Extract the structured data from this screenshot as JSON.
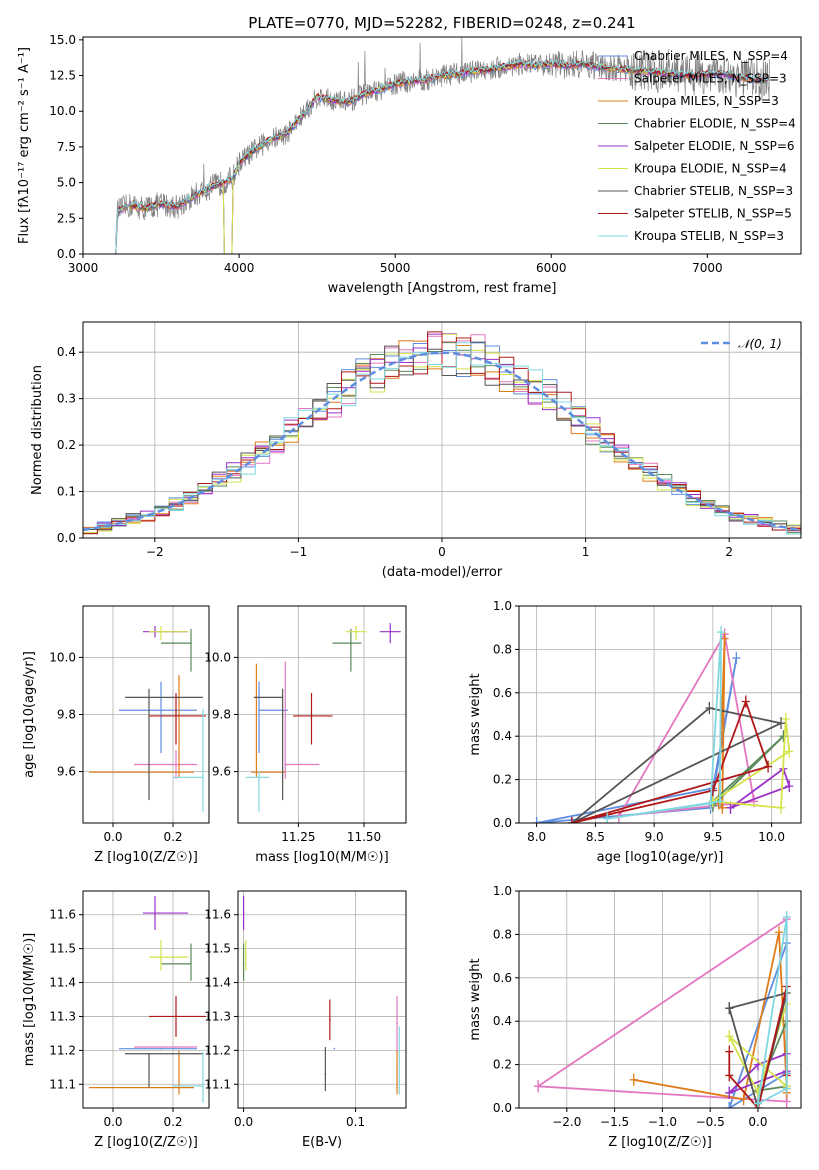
{
  "figure_title": "PLATE=0770, MJD=52282, FIBERID=0248, z=0.241",
  "colors": {
    "chabrier_miles": "#5f8ee0",
    "salpeter_miles": "#e377c2",
    "kroupa_miles": "#e07b1a",
    "chabrier_elodie": "#5a8a5a",
    "salpeter_elodie": "#9b30c8",
    "kroupa_elodie": "#d4e34a",
    "chabrier_stelib": "#555555",
    "salpeter_stelib": "#b01818",
    "kroupa_stelib": "#7fd8e0",
    "data": "#808080",
    "gauss": "#5f8ee0"
  },
  "chart_data": [
    {
      "id": "spectrum",
      "type": "line",
      "title": "PLATE=0770, MJD=52282, FIBERID=0248, z=0.241",
      "xlabel": "wavelength [Angstrom, rest frame]",
      "ylabel": "Flux [fλ10⁻¹⁷ erg cm⁻² s⁻¹ A⁻¹]",
      "xlim": [
        3000,
        7600
      ],
      "ylim": [
        0,
        15.2
      ],
      "xticks": [
        "3000",
        "4000",
        "5000",
        "6000",
        "7000"
      ],
      "yticks": [
        "0.0",
        "2.5",
        "5.0",
        "7.5",
        "10.0",
        "12.5",
        "15.0"
      ],
      "grid": false,
      "legend_position": "top-right",
      "continuum_x": [
        3210,
        3220,
        3300,
        3400,
        3500,
        3600,
        3700,
        3800,
        3900,
        3960,
        4000,
        4100,
        4200,
        4300,
        4400,
        4500,
        4600,
        4700,
        4800,
        4900,
        5000,
        5100,
        5200,
        5300,
        5400,
        5500,
        5600,
        5700,
        5800,
        5900,
        6000,
        6100,
        6200,
        6300,
        6400,
        6500,
        6600,
        6700,
        6800,
        6900,
        7000,
        7100,
        7200,
        7300,
        7400
      ],
      "continuum_y": [
        0.0,
        3.0,
        3.4,
        3.2,
        3.5,
        3.3,
        4.0,
        4.6,
        5.0,
        5.3,
        6.4,
        7.3,
        8.0,
        8.4,
        9.6,
        11.0,
        10.8,
        10.6,
        11.2,
        11.5,
        11.9,
        12.1,
        12.2,
        12.5,
        12.6,
        12.8,
        12.9,
        13.1,
        13.3,
        13.2,
        13.3,
        13.2,
        13.3,
        13.1,
        13.0,
        12.9,
        12.8,
        12.7,
        12.6,
        12.5,
        12.6,
        12.6,
        12.4,
        12.2,
        12.2
      ],
      "series": [
        {
          "name": "Chabrier MILES, N_SSP=4",
          "color_key": "chabrier_miles"
        },
        {
          "name": "Salpeter MILES, N_SSP=3",
          "color_key": "salpeter_miles"
        },
        {
          "name": "Kroupa MILES, N_SSP=3",
          "color_key": "kroupa_miles"
        },
        {
          "name": "Chabrier ELODIE, N_SSP=4",
          "color_key": "chabrier_elodie"
        },
        {
          "name": "Salpeter ELODIE, N_SSP=6",
          "color_key": "salpeter_elodie"
        },
        {
          "name": "Kroupa ELODIE, N_SSP=4",
          "color_key": "kroupa_elodie"
        },
        {
          "name": "Chabrier STELIB, N_SSP=3",
          "color_key": "chabrier_stelib"
        },
        {
          "name": "Salpeter STELIB, N_SSP=5",
          "color_key": "salpeter_stelib"
        },
        {
          "name": "Kroupa STELIB, N_SSP=3",
          "color_key": "kroupa_stelib"
        }
      ]
    },
    {
      "id": "residuals",
      "type": "histogram",
      "xlabel": "(data-model)/error",
      "ylabel": "Normed distribution",
      "xlim": [
        -2.5,
        2.5
      ],
      "ylim": [
        0,
        0.465
      ],
      "xticks": [
        "−2",
        "−1",
        "0",
        "1",
        "2"
      ],
      "yticks": [
        "0.0",
        "0.1",
        "0.2",
        "0.3",
        "0.4"
      ],
      "grid": true,
      "legend_position": "top-right",
      "legend_label": "𝒩(0, 1)",
      "bin_width": 0.1
    },
    {
      "id": "age_vs_Z",
      "type": "scatter",
      "xlabel": "Z [log10(Z/Z☉)]",
      "ylabel": "age  [log10(age/yr)]",
      "xlim": [
        -0.1,
        0.32
      ],
      "ylim": [
        9.42,
        10.18
      ],
      "xticks": [
        "0.0",
        "0.2"
      ],
      "yticks": [
        "9.6",
        "9.8",
        "10.0"
      ],
      "grid": true,
      "points": [
        {
          "c": "chabrier_miles",
          "x": 0.16,
          "y": 9.815,
          "xe": [
            0.14,
            0.12
          ],
          "ye": [
            0.15,
            0.1
          ]
        },
        {
          "c": "salpeter_miles",
          "x": 0.21,
          "y": 9.625,
          "xe": [
            0.14,
            0.07
          ],
          "ye": [
            0.05,
            0.05
          ]
        },
        {
          "c": "kroupa_miles",
          "x": 0.22,
          "y": 9.598,
          "xe": [
            0.3,
            0.05
          ],
          "ye": [
            0.02,
            0.34
          ]
        },
        {
          "c": "chabrier_elodie",
          "x": 0.26,
          "y": 10.05,
          "xe": [
            0.1,
            0.0
          ],
          "ye": [
            0.1,
            0.05
          ]
        },
        {
          "c": "salpeter_elodie",
          "x": 0.14,
          "y": 10.09,
          "xe": [
            0.04,
            0.11
          ],
          "ye": [
            0.02,
            0.02
          ]
        },
        {
          "c": "kroupa_elodie",
          "x": 0.16,
          "y": 10.09,
          "xe": [
            0.04,
            0.09
          ],
          "ye": [
            0.03,
            0.02
          ]
        },
        {
          "c": "chabrier_stelib",
          "x": 0.12,
          "y": 9.86,
          "xe": [
            0.08,
            0.18
          ],
          "ye": [
            0.36,
            0.03
          ]
        },
        {
          "c": "salpeter_stelib",
          "x": 0.21,
          "y": 9.795,
          "xe": [
            0.09,
            0.1
          ],
          "ye": [
            0.1,
            0.08
          ]
        },
        {
          "c": "kroupa_stelib",
          "x": 0.3,
          "y": 9.58,
          "xe": [
            0.1,
            0.0
          ],
          "ye": [
            0.12,
            0.24
          ]
        }
      ]
    },
    {
      "id": "age_vs_mass",
      "type": "scatter",
      "xlabel": "mass [log10(M/M☉)]",
      "ylabel": "",
      "xlim": [
        11.02,
        11.66
      ],
      "ylim": [
        9.42,
        10.18
      ],
      "xticks": [
        "11.25",
        "11.50"
      ],
      "yticks": [
        "9.6",
        "9.8",
        "10.0"
      ],
      "grid": true,
      "points": [
        {
          "c": "chabrier_miles",
          "x": 11.1,
          "y": 9.815,
          "xe": [
            0.0,
            0.11
          ],
          "ye": [
            0.15,
            0.1
          ]
        },
        {
          "c": "salpeter_miles",
          "x": 11.2,
          "y": 9.625,
          "xe": [
            0.0,
            0.13
          ],
          "ye": [
            0.05,
            0.36
          ]
        },
        {
          "c": "kroupa_miles",
          "x": 11.09,
          "y": 9.598,
          "xe": [
            0.02,
            0.11
          ],
          "ye": [
            0.02,
            0.38
          ]
        },
        {
          "c": "chabrier_elodie",
          "x": 11.45,
          "y": 10.05,
          "xe": [
            0.07,
            0.04
          ],
          "ye": [
            0.1,
            0.05
          ]
        },
        {
          "c": "salpeter_elodie",
          "x": 11.6,
          "y": 10.09,
          "xe": [
            0.04,
            0.04
          ],
          "ye": [
            0.04,
            0.03
          ]
        },
        {
          "c": "kroupa_elodie",
          "x": 11.47,
          "y": 10.09,
          "xe": [
            0.04,
            0.04
          ],
          "ye": [
            0.03,
            0.02
          ]
        },
        {
          "c": "chabrier_stelib",
          "x": 11.19,
          "y": 9.86,
          "xe": [
            0.11,
            0.0
          ],
          "ye": [
            0.36,
            0.03
          ]
        },
        {
          "c": "salpeter_stelib",
          "x": 11.3,
          "y": 9.795,
          "xe": [
            0.07,
            0.08
          ],
          "ye": [
            0.1,
            0.08
          ]
        },
        {
          "c": "kroupa_stelib",
          "x": 11.1,
          "y": 9.58,
          "xe": [
            0.05,
            0.04
          ],
          "ye": [
            0.12,
            0.02
          ]
        }
      ]
    },
    {
      "id": "mass_weight_vs_age",
      "type": "line",
      "xlabel": "age  [log10(age/yr)]",
      "ylabel": "mass weight",
      "xlim": [
        7.85,
        10.25
      ],
      "ylim": [
        0,
        1.0
      ],
      "xticks": [
        "8.0",
        "8.5",
        "9.0",
        "9.5",
        "10.0"
      ],
      "yticks": [
        "0.0",
        "0.2",
        "0.4",
        "0.6",
        "0.8",
        "1.0"
      ],
      "grid": true,
      "series": [
        {
          "c": "chabrier_miles",
          "x": [
            8.0,
            9.48,
            9.7,
            9.5,
            8.0
          ],
          "y": [
            0.0,
            0.07,
            0.76,
            0.16,
            0.0
          ]
        },
        {
          "c": "salpeter_miles",
          "x": [
            8.7,
            9.6,
            9.85,
            8.7
          ],
          "y": [
            0.03,
            0.87,
            0.1,
            0.03
          ]
        },
        {
          "c": "kroupa_miles",
          "x": [
            9.55,
            9.6,
            9.58,
            9.55
          ],
          "y": [
            0.09,
            0.85,
            0.07,
            0.09
          ]
        },
        {
          "c": "chabrier_elodie",
          "x": [
            9.5,
            10.1,
            9.5,
            9.5
          ],
          "y": [
            0.08,
            0.4,
            0.1,
            0.08
          ]
        },
        {
          "c": "salpeter_elodie",
          "x": [
            9.65,
            10.1,
            10.15,
            9.65
          ],
          "y": [
            0.07,
            0.25,
            0.17,
            0.07
          ]
        },
        {
          "c": "kroupa_elodie",
          "x": [
            9.5,
            10.08,
            10.12,
            10.15,
            9.5
          ],
          "y": [
            0.1,
            0.07,
            0.48,
            0.33,
            0.1
          ]
        },
        {
          "c": "chabrier_stelib",
          "x": [
            8.3,
            9.47,
            10.08,
            8.3
          ],
          "y": [
            0.0,
            0.53,
            0.46,
            0.0
          ]
        },
        {
          "c": "salpeter_stelib",
          "x": [
            8.3,
            9.5,
            9.78,
            9.97,
            8.3
          ],
          "y": [
            0.0,
            0.15,
            0.56,
            0.26,
            0.0
          ]
        },
        {
          "c": "kroupa_stelib",
          "x": [
            8.6,
            9.48,
            9.57,
            9.56,
            8.6
          ],
          "y": [
            0.02,
            0.09,
            0.88,
            0.1,
            0.02
          ]
        }
      ]
    },
    {
      "id": "mass_vs_Z",
      "type": "scatter",
      "xlabel": "Z [log10(Z/Z☉)]",
      "ylabel": "mass [log10(M/M☉)]",
      "xlim": [
        -0.1,
        0.32
      ],
      "ylim": [
        11.03,
        11.67
      ],
      "xticks": [
        "0.0",
        "0.2"
      ],
      "yticks": [
        "11.1",
        "11.2",
        "11.3",
        "11.4",
        "11.5",
        "11.6"
      ],
      "grid": true,
      "points": [
        {
          "c": "chabrier_miles",
          "x": 0.16,
          "y": 11.205,
          "xe": [
            0.14,
            0.12
          ],
          "ye": [
            0.0,
            0.0
          ]
        },
        {
          "c": "salpeter_miles",
          "x": 0.21,
          "y": 11.21,
          "xe": [
            0.14,
            0.07
          ],
          "ye": [
            0.0,
            0.0
          ]
        },
        {
          "c": "kroupa_miles",
          "x": 0.22,
          "y": 11.09,
          "xe": [
            0.3,
            0.05
          ],
          "ye": [
            0.02,
            0.11
          ]
        },
        {
          "c": "chabrier_elodie",
          "x": 0.26,
          "y": 11.455,
          "xe": [
            0.1,
            0.0
          ],
          "ye": [
            0.05,
            0.06
          ]
        },
        {
          "c": "salpeter_elodie",
          "x": 0.14,
          "y": 11.605,
          "xe": [
            0.04,
            0.11
          ],
          "ye": [
            0.05,
            0.05
          ]
        },
        {
          "c": "kroupa_elodie",
          "x": 0.16,
          "y": 11.475,
          "xe": [
            0.04,
            0.09
          ],
          "ye": [
            0.04,
            0.05
          ]
        },
        {
          "c": "chabrier_stelib",
          "x": 0.12,
          "y": 11.19,
          "xe": [
            0.08,
            0.18
          ],
          "ye": [
            0.1,
            0.0
          ]
        },
        {
          "c": "salpeter_stelib",
          "x": 0.21,
          "y": 11.3,
          "xe": [
            0.09,
            0.1
          ],
          "ye": [
            0.06,
            0.06
          ]
        },
        {
          "c": "kroupa_stelib",
          "x": 0.3,
          "y": 11.095,
          "xe": [
            0.1,
            0.0
          ],
          "ye": [
            0.05,
            0.1
          ]
        }
      ]
    },
    {
      "id": "mass_vs_ebv",
      "type": "scatter",
      "xlabel": "E(B-V)",
      "ylabel": "",
      "xlim": [
        -0.005,
        0.145
      ],
      "ylim": [
        11.03,
        11.67
      ],
      "xticks": [
        "0.0",
        "0.1"
      ],
      "yticks": [
        "11.1",
        "11.2",
        "11.3",
        "11.4",
        "11.5",
        "11.6"
      ],
      "grid": true,
      "points": [
        {
          "c": "chabrier_miles",
          "x": 0.081,
          "y": 11.205,
          "xe": [
            0,
            0
          ],
          "ye": [
            0.0,
            0.0
          ]
        },
        {
          "c": "salpeter_miles",
          "x": 0.137,
          "y": 11.28,
          "xe": [
            0,
            0
          ],
          "ye": [
            0.09,
            0.08
          ]
        },
        {
          "c": "kroupa_miles",
          "x": 0.137,
          "y": 11.09,
          "xe": [
            0,
            0
          ],
          "ye": [
            0.02,
            0.11
          ]
        },
        {
          "c": "chabrier_elodie",
          "x": 0.0,
          "y": 11.455,
          "xe": [
            0,
            0
          ],
          "ye": [
            0.05,
            0.06
          ]
        },
        {
          "c": "salpeter_elodie",
          "x": 0.0,
          "y": 11.605,
          "xe": [
            0,
            0
          ],
          "ye": [
            0.05,
            0.05
          ]
        },
        {
          "c": "kroupa_elodie",
          "x": 0.002,
          "y": 11.475,
          "xe": [
            0,
            0
          ],
          "ye": [
            0.04,
            0.05
          ]
        },
        {
          "c": "chabrier_stelib",
          "x": 0.073,
          "y": 11.13,
          "xe": [
            0,
            0
          ],
          "ye": [
            0.05,
            0.08
          ]
        },
        {
          "c": "salpeter_stelib",
          "x": 0.077,
          "y": 11.29,
          "xe": [
            0,
            0
          ],
          "ye": [
            0.06,
            0.06
          ]
        },
        {
          "c": "kroupa_stelib",
          "x": 0.139,
          "y": 11.17,
          "xe": [
            0,
            0
          ],
          "ye": [
            0.1,
            0.1
          ]
        }
      ]
    },
    {
      "id": "mass_weight_vs_Z",
      "type": "line",
      "xlabel": "Z [log10(Z/Z☉)]",
      "ylabel": "mass weight",
      "xlim": [
        -2.5,
        0.45
      ],
      "ylim": [
        0,
        1.0
      ],
      "xticks": [
        "−2.0",
        "−1.5",
        "−1.0",
        "−0.5",
        "0.0"
      ],
      "yticks": [
        "0.0",
        "0.2",
        "0.4",
        "0.6",
        "0.8",
        "1.0"
      ],
      "grid": true,
      "series": [
        {
          "c": "chabrier_miles",
          "x": [
            -0.3,
            0.3,
            0.3,
            -0.3
          ],
          "y": [
            0.0,
            0.76,
            0.16,
            0.0
          ]
        },
        {
          "c": "salpeter_miles",
          "x": [
            -2.3,
            0.3,
            0.3,
            -2.3
          ],
          "y": [
            0.1,
            0.87,
            0.03,
            0.1
          ]
        },
        {
          "c": "kroupa_miles",
          "x": [
            -1.3,
            -0.15,
            0.22,
            0.3,
            0.3
          ],
          "y": [
            0.13,
            0.04,
            0.81,
            0.09,
            0.07
          ]
        },
        {
          "c": "chabrier_elodie",
          "x": [
            0.0,
            0.3,
            0.3,
            0.0
          ],
          "y": [
            0.08,
            0.4,
            0.1,
            0.08
          ]
        },
        {
          "c": "salpeter_elodie",
          "x": [
            -0.3,
            0.0,
            0.3,
            0.3,
            -0.3
          ],
          "y": [
            0.07,
            0.2,
            0.25,
            0.17,
            0.07
          ]
        },
        {
          "c": "kroupa_elodie",
          "x": [
            -0.3,
            0.0,
            0.3,
            0.3,
            -0.3
          ],
          "y": [
            0.33,
            0.07,
            0.48,
            0.1,
            0.33
          ]
        },
        {
          "c": "chabrier_stelib",
          "x": [
            -0.3,
            0.0,
            0.3,
            -0.3
          ],
          "y": [
            0.46,
            0.0,
            0.53,
            0.46
          ]
        },
        {
          "c": "salpeter_stelib",
          "x": [
            -0.3,
            -0.3,
            0.0,
            0.3,
            0.3
          ],
          "y": [
            0.26,
            0.15,
            0.0,
            0.56,
            0.15
          ]
        },
        {
          "c": "kroupa_stelib",
          "x": [
            0.0,
            0.3,
            0.3,
            0.0
          ],
          "y": [
            0.02,
            0.88,
            0.09,
            0.02
          ]
        }
      ]
    }
  ]
}
